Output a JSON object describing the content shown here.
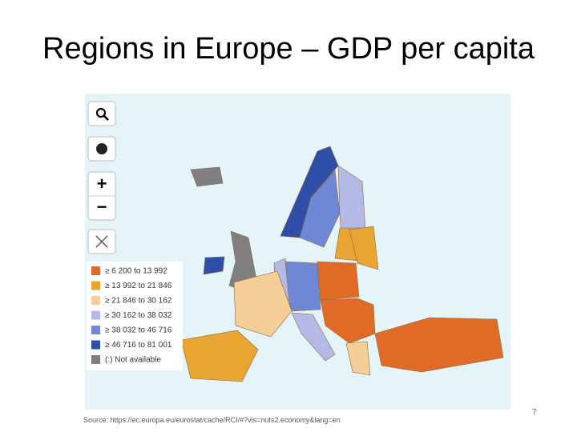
{
  "header": {
    "title": "Regions in Europe – GDP per capita"
  },
  "map": {
    "controls": {
      "zoom_in": "+",
      "zoom_out": "−"
    },
    "legend": [
      {
        "label": "≥ 6 200 to 13 992",
        "color": "#e06a26"
      },
      {
        "label": "≥ 13 992 to 21 846",
        "color": "#e9a532"
      },
      {
        "label": "≥ 21 846 to 30 162",
        "color": "#f4cf97"
      },
      {
        "label": "≥ 30 162 to 38 032",
        "color": "#b4b9e6"
      },
      {
        "label": "≥ 38 032 to 46 716",
        "color": "#6e88d6"
      },
      {
        "label": "≥ 46 716 to 81 001",
        "color": "#2f4ea8"
      },
      {
        "label": "(:) Not available",
        "color": "#7f7f7f"
      }
    ]
  },
  "footer": {
    "source": "Source: https://ec.europa.eu/eurostat/cache/RCI/#?vis=nuts2.economy&lang=en",
    "page_number": "7"
  }
}
